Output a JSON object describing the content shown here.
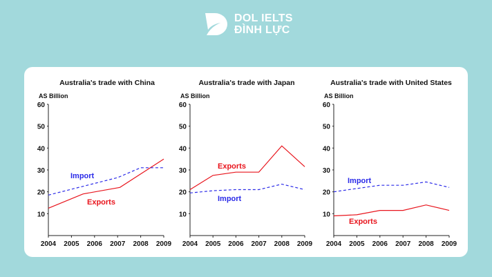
{
  "logo": {
    "line1": "DOL IELTS",
    "line2": "ĐÌNH LỰC"
  },
  "colors": {
    "background": "#a2d9dc",
    "exports": "#e8141c",
    "import": "#2a2ae8",
    "axis": "#222222"
  },
  "chart_data": [
    {
      "type": "line",
      "title": "Australia's trade with China",
      "ylabel": "AS Billion",
      "ylim": [
        0,
        60
      ],
      "yticks": [
        10,
        20,
        30,
        40,
        50,
        60
      ],
      "xticks": [
        2004,
        2005,
        2006,
        2007,
        2008,
        2009
      ],
      "series": [
        {
          "name": "Exports",
          "style": "solid",
          "points": [
            [
              2004,
              12.5
            ],
            [
              2005.5,
              19
            ],
            [
              2007.1,
              22
            ],
            [
              2009,
              35
            ]
          ]
        },
        {
          "name": "Import",
          "style": "dashed",
          "points": [
            [
              2004,
              18.5
            ],
            [
              2007,
              26.5
            ],
            [
              2008,
              31
            ],
            [
              2009,
              31
            ]
          ]
        }
      ]
    },
    {
      "type": "line",
      "title": "Australia's trade with Japan",
      "ylabel": "AS Billion",
      "ylim": [
        0,
        60
      ],
      "yticks": [
        10,
        20,
        30,
        40,
        50,
        60
      ],
      "xticks": [
        2004,
        2005,
        2006,
        2007,
        2008,
        2009
      ],
      "series": [
        {
          "name": "Exports",
          "style": "solid",
          "points": [
            [
              2004,
              21
            ],
            [
              2005,
              27.5
            ],
            [
              2006,
              29
            ],
            [
              2007,
              29
            ],
            [
              2008,
              41
            ],
            [
              2009,
              31.5
            ]
          ]
        },
        {
          "name": "Import",
          "style": "dashed",
          "points": [
            [
              2004,
              19.5
            ],
            [
              2005,
              20.5
            ],
            [
              2006,
              21
            ],
            [
              2007,
              21
            ],
            [
              2008,
              23.5
            ],
            [
              2009,
              21
            ]
          ]
        }
      ]
    },
    {
      "type": "line",
      "title": "Australia's trade with United States",
      "ylabel": "AS Billion",
      "ylim": [
        0,
        60
      ],
      "yticks": [
        10,
        20,
        30,
        40,
        50,
        60
      ],
      "xticks": [
        2004,
        2005,
        2006,
        2007,
        2008,
        2009
      ],
      "series": [
        {
          "name": "Exports",
          "style": "solid",
          "points": [
            [
              2004,
              9
            ],
            [
              2005,
              9.5
            ],
            [
              2006,
              11.5
            ],
            [
              2007,
              11.5
            ],
            [
              2008,
              14
            ],
            [
              2009,
              11.5
            ]
          ]
        },
        {
          "name": "Import",
          "style": "dashed",
          "points": [
            [
              2004,
              20
            ],
            [
              2005,
              21.5
            ],
            [
              2006,
              23
            ],
            [
              2007,
              23
            ],
            [
              2008,
              24.5
            ],
            [
              2009,
              22
            ]
          ]
        }
      ]
    }
  ]
}
